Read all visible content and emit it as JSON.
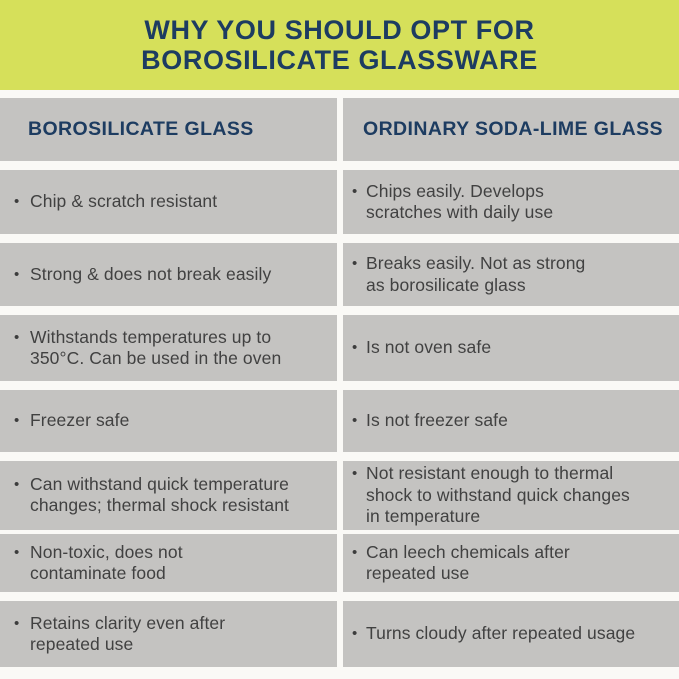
{
  "banner": {
    "title": "WHY YOU SHOULD OPT FOR\nBOROSILICATE GLASSWARE"
  },
  "table": {
    "bullet": "•",
    "columns": [
      {
        "header": "BOROSILICATE GLASS"
      },
      {
        "header": "ORDINARY SODA-LIME GLASS"
      }
    ],
    "rows": [
      {
        "left": "Chip & scratch resistant",
        "right": "Chips easily. Develops\nscratches with daily use"
      },
      {
        "left": "Strong & does not break easily",
        "right": "Breaks easily. Not as strong\nas borosilicate glass"
      },
      {
        "left": "Withstands temperatures up to\n350°C. Can be used in the oven",
        "right": "Is not oven safe"
      },
      {
        "left": "Freezer safe",
        "right": "Is not freezer safe"
      },
      {
        "left": "Can withstand quick temperature\nchanges; thermal shock resistant",
        "right": "Not resistant enough to thermal\nshock to withstand quick changes\nin temperature"
      },
      {
        "left": "Non-toxic, does not\ncontaminate food",
        "right": "Can leech chemicals after\nrepeated use"
      },
      {
        "left": "Retains clarity even after\nrepeated use",
        "right": "Turns cloudy after repeated usage"
      }
    ]
  },
  "colors": {
    "banner_background": "#d6e05a",
    "heading_navy": "#1d3c61",
    "cell_gray": "#c4c3c1",
    "body_text": "#414141",
    "page_background": "#faf9f6"
  }
}
